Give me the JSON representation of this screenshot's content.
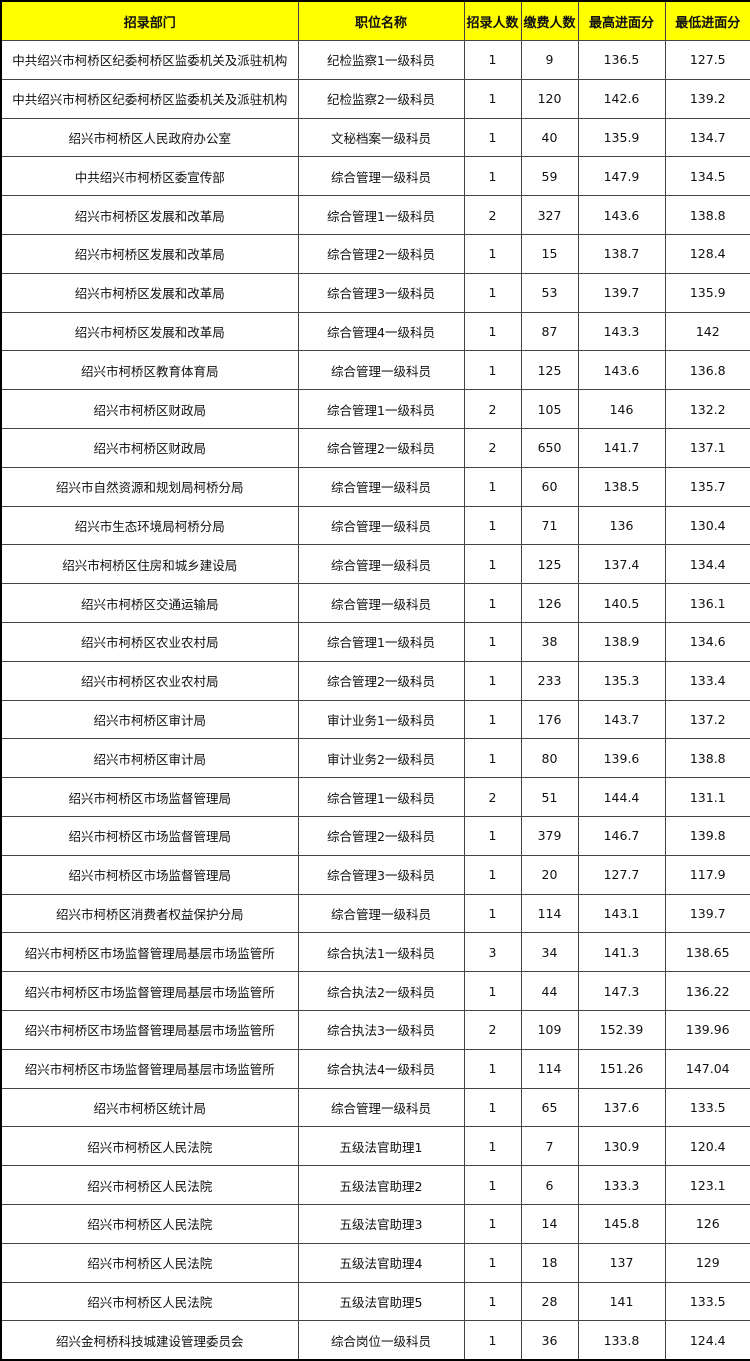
{
  "header": {
    "columns": [
      "招录部门",
      "职位名称",
      "招录人数",
      "缴费人数",
      "最高进面分",
      "最低进面分"
    ],
    "background": "#ffff00"
  },
  "rows": [
    [
      "中共绍兴市柯桥区纪委柯桥区监委机关及派驻机构",
      "纪检监察1一级科员",
      "1",
      "9",
      "136.5",
      "127.5"
    ],
    [
      "中共绍兴市柯桥区纪委柯桥区监委机关及派驻机构",
      "纪检监察2一级科员",
      "1",
      "120",
      "142.6",
      "139.2"
    ],
    [
      "绍兴市柯桥区人民政府办公室",
      "文秘档案一级科员",
      "1",
      "40",
      "135.9",
      "134.7"
    ],
    [
      "中共绍兴市柯桥区委宣传部",
      "综合管理一级科员",
      "1",
      "59",
      "147.9",
      "134.5"
    ],
    [
      "绍兴市柯桥区发展和改革局",
      "综合管理1一级科员",
      "2",
      "327",
      "143.6",
      "138.8"
    ],
    [
      "绍兴市柯桥区发展和改革局",
      "综合管理2一级科员",
      "1",
      "15",
      "138.7",
      "128.4"
    ],
    [
      "绍兴市柯桥区发展和改革局",
      "综合管理3一级科员",
      "1",
      "53",
      "139.7",
      "135.9"
    ],
    [
      "绍兴市柯桥区发展和改革局",
      "综合管理4一级科员",
      "1",
      "87",
      "143.3",
      "142"
    ],
    [
      "绍兴市柯桥区教育体育局",
      "综合管理一级科员",
      "1",
      "125",
      "143.6",
      "136.8"
    ],
    [
      "绍兴市柯桥区财政局",
      "综合管理1一级科员",
      "2",
      "105",
      "146",
      "132.2"
    ],
    [
      "绍兴市柯桥区财政局",
      "综合管理2一级科员",
      "2",
      "650",
      "141.7",
      "137.1"
    ],
    [
      "绍兴市自然资源和规划局柯桥分局",
      "综合管理一级科员",
      "1",
      "60",
      "138.5",
      "135.7"
    ],
    [
      "绍兴市生态环境局柯桥分局",
      "综合管理一级科员",
      "1",
      "71",
      "136",
      "130.4"
    ],
    [
      "绍兴市柯桥区住房和城乡建设局",
      "综合管理一级科员",
      "1",
      "125",
      "137.4",
      "134.4"
    ],
    [
      "绍兴市柯桥区交通运输局",
      "综合管理一级科员",
      "1",
      "126",
      "140.5",
      "136.1"
    ],
    [
      "绍兴市柯桥区农业农村局",
      "综合管理1一级科员",
      "1",
      "38",
      "138.9",
      "134.6"
    ],
    [
      "绍兴市柯桥区农业农村局",
      "综合管理2一级科员",
      "1",
      "233",
      "135.3",
      "133.4"
    ],
    [
      "绍兴市柯桥区审计局",
      "审计业务1一级科员",
      "1",
      "176",
      "143.7",
      "137.2"
    ],
    [
      "绍兴市柯桥区审计局",
      "审计业务2一级科员",
      "1",
      "80",
      "139.6",
      "138.8"
    ],
    [
      "绍兴市柯桥区市场监督管理局",
      "综合管理1一级科员",
      "2",
      "51",
      "144.4",
      "131.1"
    ],
    [
      "绍兴市柯桥区市场监督管理局",
      "综合管理2一级科员",
      "1",
      "379",
      "146.7",
      "139.8"
    ],
    [
      "绍兴市柯桥区市场监督管理局",
      "综合管理3一级科员",
      "1",
      "20",
      "127.7",
      "117.9"
    ],
    [
      "绍兴市柯桥区消费者权益保护分局",
      "综合管理一级科员",
      "1",
      "114",
      "143.1",
      "139.7"
    ],
    [
      "绍兴市柯桥区市场监督管理局基层市场监管所",
      "综合执法1一级科员",
      "3",
      "34",
      "141.3",
      "138.65"
    ],
    [
      "绍兴市柯桥区市场监督管理局基层市场监管所",
      "综合执法2一级科员",
      "1",
      "44",
      "147.3",
      "136.22"
    ],
    [
      "绍兴市柯桥区市场监督管理局基层市场监管所",
      "综合执法3一级科员",
      "2",
      "109",
      "152.39",
      "139.96"
    ],
    [
      "绍兴市柯桥区市场监督管理局基层市场监管所",
      "综合执法4一级科员",
      "1",
      "114",
      "151.26",
      "147.04"
    ],
    [
      "绍兴市柯桥区统计局",
      "综合管理一级科员",
      "1",
      "65",
      "137.6",
      "133.5"
    ],
    [
      "绍兴市柯桥区人民法院",
      "五级法官助理1",
      "1",
      "7",
      "130.9",
      "120.4"
    ],
    [
      "绍兴市柯桥区人民法院",
      "五级法官助理2",
      "1",
      "6",
      "133.3",
      "123.1"
    ],
    [
      "绍兴市柯桥区人民法院",
      "五级法官助理3",
      "1",
      "14",
      "145.8",
      "126"
    ],
    [
      "绍兴市柯桥区人民法院",
      "五级法官助理4",
      "1",
      "18",
      "137",
      "129"
    ],
    [
      "绍兴市柯桥区人民法院",
      "五级法官助理5",
      "1",
      "28",
      "141",
      "133.5"
    ],
    [
      "绍兴金柯桥科技城建设管理委员会",
      "综合岗位一级科员",
      "1",
      "36",
      "133.8",
      "124.4"
    ]
  ]
}
